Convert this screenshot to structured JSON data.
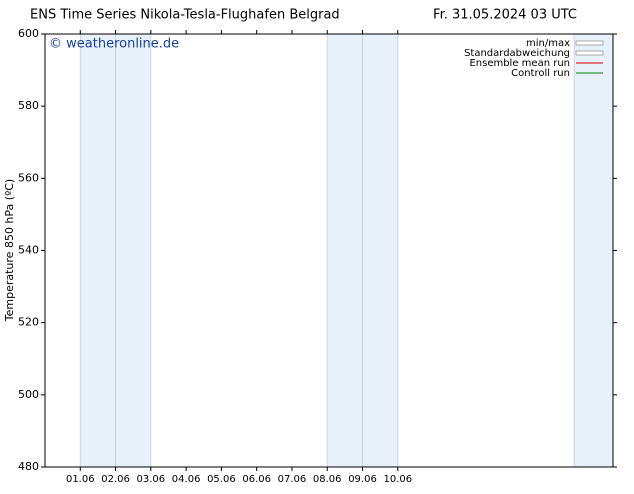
{
  "chart_data": {
    "type": "line",
    "title": "ENS Time Series Nikola-Tesla-Flughafen Belgrad",
    "date_label": "Fr. 31.05.2024 03 UTC",
    "watermark": "© weatheronline.de",
    "y_label": "Temperature 850 hPa (ºC)",
    "ylim": [
      480,
      600
    ],
    "yticks": [
      480,
      500,
      520,
      540,
      560,
      580,
      600
    ],
    "xlim": [
      0,
      16.1
    ],
    "xticks": [
      {
        "value": 1,
        "label": "01.06"
      },
      {
        "value": 2,
        "label": "02.06"
      },
      {
        "value": 3,
        "label": "03.06"
      },
      {
        "value": 4,
        "label": "04.06"
      },
      {
        "value": 5,
        "label": "05.06"
      },
      {
        "value": 6,
        "label": "06.06"
      },
      {
        "value": 7,
        "label": "07.06"
      },
      {
        "value": 8,
        "label": "08.06"
      },
      {
        "value": 9,
        "label": "09.06"
      },
      {
        "value": 10,
        "label": "10.06"
      }
    ],
    "shaded_ranges": [
      [
        1,
        2
      ],
      [
        2,
        3
      ],
      [
        8,
        9
      ],
      [
        9,
        10
      ],
      [
        15,
        16.1
      ]
    ],
    "shade_color": "#e8f0f9",
    "series": [
      {
        "name": "min/max",
        "color": "#999999",
        "style": "box"
      },
      {
        "name": "Standardabweichung",
        "color": "#999999",
        "style": "box"
      },
      {
        "name": "Ensemble mean run",
        "color": "#dd0000",
        "style": "line"
      },
      {
        "name": "Controll run",
        "color": "#008000",
        "style": "line"
      }
    ]
  }
}
